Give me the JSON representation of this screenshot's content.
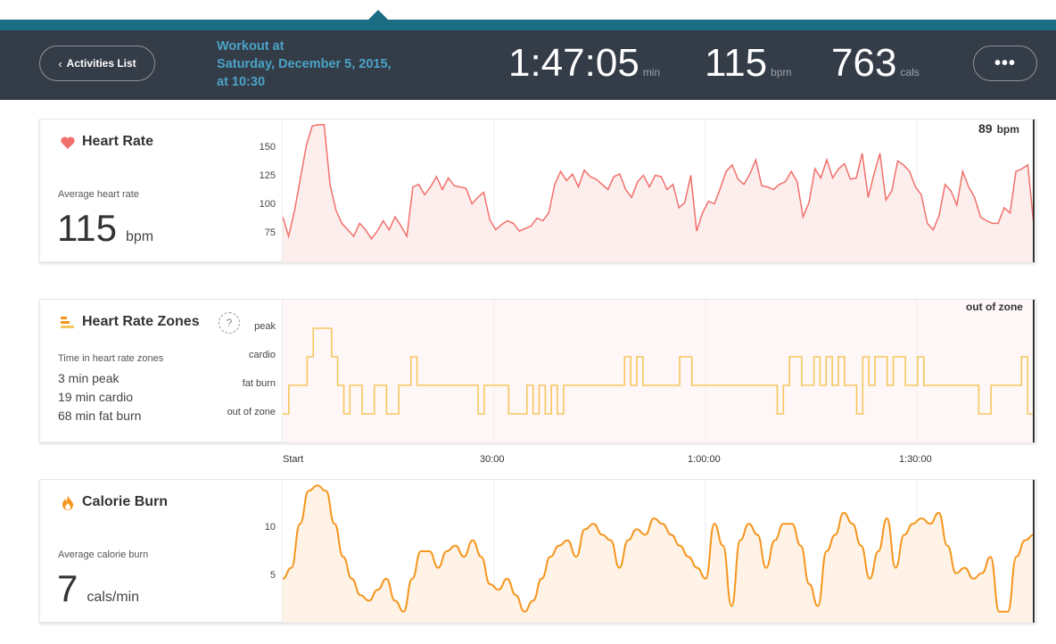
{
  "nav": {
    "back_label": "Activities List",
    "more_label": "•••"
  },
  "workout": {
    "title_line1": "Workout at",
    "title_line2": "Saturday, December 5, 2015,",
    "title_line3": "at 10:30"
  },
  "stats": {
    "duration": {
      "value": "1:47:05",
      "unit": "min"
    },
    "heart_rate": {
      "value": "115",
      "unit": "bpm"
    },
    "calories": {
      "value": "763",
      "unit": "cals"
    }
  },
  "heart_rate_panel": {
    "title": "Heart Rate",
    "avg_label": "Average heart rate",
    "avg_value": "115",
    "avg_unit": "bpm",
    "current_value": "89",
    "current_unit": "bpm",
    "y_ticks": [
      "150",
      "125",
      "100",
      "75"
    ],
    "line_color": "#f0706b",
    "fill_color": "#fdeeee"
  },
  "zones_panel": {
    "title": "Heart Rate Zones",
    "help_label": "?",
    "summary_label": "Time in heart rate zones",
    "lines": [
      "3 min peak",
      "19 min cardio",
      "68 min fat burn"
    ],
    "zone_labels": [
      "peak",
      "cardio",
      "fat burn",
      "out of zone"
    ],
    "current_zone": "out of zone",
    "line_color": "#f5c75e"
  },
  "time_axis": [
    "Start",
    "30:00",
    "1:00:00",
    "1:30:00"
  ],
  "calorie_panel": {
    "title": "Calorie Burn",
    "avg_label": "Average calorie burn",
    "avg_value": "7",
    "avg_unit": "cals/min",
    "y_ticks": [
      "10",
      "5"
    ],
    "line_color": "#f5961e",
    "fill_color": "#fef3e6"
  },
  "chart_data": [
    {
      "type": "line",
      "series": [
        {
          "values": [
            95,
            80,
            100,
            125,
            150,
            165,
            166,
            166,
            120,
            100,
            90,
            85,
            80,
            90,
            85,
            78,
            84,
            92,
            85,
            95,
            88,
            80,
            118,
            120,
            112,
            118,
            126,
            116,
            125,
            119,
            118,
            117,
            105,
            110,
            114,
            93,
            85,
            89,
            92,
            90,
            84,
            86,
            88,
            94,
            92,
            98,
            120,
            130,
            123,
            128,
            118,
            131,
            126,
            124,
            120,
            116,
            126,
            128,
            116,
            110,
            122,
            127,
            118,
            127,
            126,
            116,
            120,
            102,
            106,
            127,
            84,
            98,
            107,
            105,
            117,
            130,
            135,
            124,
            120,
            128,
            139,
            119,
            118,
            116,
            120,
            122,
            130,
            122,
            95,
            106,
            132,
            125,
            139,
            125,
            132,
            136,
            124,
            125,
            144,
            110,
            128,
            144,
            108,
            115,
            138,
            135,
            130,
            118,
            112,
            90,
            85,
            96,
            120,
            115,
            104,
            130,
            118,
            110,
            95,
            92,
            90,
            90,
            102,
            98,
            130,
            132,
            135,
            89
          ]
        }
      ],
      "x_range_minutes": [
        0,
        107
      ],
      "ylim": [
        60,
        170
      ]
    },
    {
      "type": "line",
      "zones": [
        "out of zone",
        "fat burn",
        "cardio",
        "peak"
      ],
      "series": [
        {
          "values": [
            0,
            1,
            1,
            1,
            2,
            3,
            3,
            3,
            2,
            1,
            0,
            1,
            1,
            0,
            0,
            1,
            1,
            0,
            0,
            1,
            1,
            2,
            1,
            1,
            1,
            1,
            1,
            1,
            1,
            1,
            1,
            1,
            0,
            1,
            1,
            1,
            1,
            0,
            0,
            0,
            1,
            0,
            1,
            0,
            1,
            0,
            1,
            1,
            1,
            1,
            1,
            1,
            1,
            1,
            1,
            1,
            2,
            1,
            2,
            1,
            1,
            1,
            1,
            1,
            1,
            2,
            2,
            1,
            1,
            1,
            1,
            1,
            1,
            1,
            1,
            1,
            1,
            1,
            1,
            1,
            1,
            0,
            1,
            2,
            2,
            1,
            1,
            2,
            1,
            2,
            1,
            2,
            1,
            1,
            0,
            2,
            1,
            2,
            2,
            1,
            2,
            2,
            1,
            1,
            2,
            1,
            1,
            1,
            1,
            1,
            1,
            1,
            1,
            1,
            0,
            0,
            1,
            1,
            1,
            1,
            1,
            2,
            0
          ]
        }
      ],
      "x_range_minutes": [
        0,
        107
      ]
    },
    {
      "type": "line",
      "series": [
        {
          "values": [
            5,
            6,
            10,
            13,
            13.5,
            13,
            10,
            7,
            5,
            3.5,
            3,
            4,
            5,
            3,
            2,
            5,
            7.5,
            7.5,
            6,
            7.5,
            8,
            7,
            8.5,
            7,
            4.5,
            4,
            5,
            3.5,
            2,
            3,
            5,
            7,
            8,
            8.5,
            7,
            9.5,
            10,
            9,
            8.5,
            6,
            8.5,
            9.5,
            9,
            10.5,
            10,
            9,
            8,
            7,
            6,
            5,
            10,
            8,
            2.5,
            8.5,
            10,
            9,
            6,
            8.5,
            10,
            10,
            8,
            4.5,
            2.5,
            7.5,
            9,
            11,
            10,
            8,
            5,
            7.5,
            10.5,
            6,
            9,
            10,
            10.5,
            10,
            11,
            8,
            5.5,
            6,
            5,
            5.5,
            7,
            2,
            2,
            7,
            8.5,
            9
          ]
        }
      ],
      "x_range_minutes": [
        0,
        107
      ],
      "ylim": [
        1,
        14
      ],
      "ylabel": ""
    }
  ]
}
